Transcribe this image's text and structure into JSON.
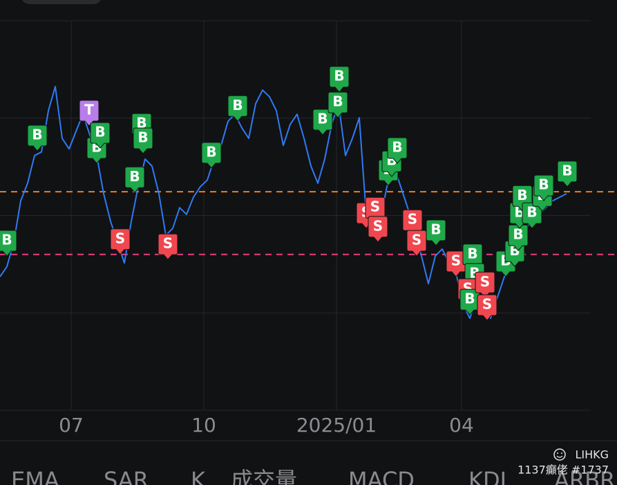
{
  "chart_data": {
    "type": "line",
    "x": [
      0,
      1,
      2,
      3,
      4,
      5,
      6,
      7,
      8,
      9,
      10,
      11,
      12,
      13,
      14,
      15,
      16,
      17,
      18,
      19,
      20,
      21,
      22,
      23,
      24,
      25,
      26,
      27,
      28,
      29,
      30,
      31,
      32,
      33,
      34,
      35,
      36,
      37,
      38,
      39,
      40,
      41,
      42,
      43,
      44,
      45,
      46,
      47,
      48,
      49,
      50,
      51,
      52,
      53,
      54,
      55,
      56,
      57,
      58,
      59,
      60,
      61,
      62,
      63,
      64,
      65,
      66,
      67,
      68,
      69,
      70,
      71,
      72,
      73,
      74,
      75,
      76,
      77,
      78,
      79,
      80,
      81,
      82
    ],
    "series": [
      {
        "color": "#2f7bf5",
        "values": [
          34.3,
          36.9,
          43.2,
          53.8,
          58.3,
          65.4,
          66.3,
          76.9,
          83.1,
          69.8,
          67.1,
          71.6,
          76.0,
          70.7,
          65.4,
          55.6,
          48.5,
          43.2,
          37.8,
          48.5,
          57.4,
          64.5,
          62.7,
          55.6,
          44.9,
          46.7,
          52.0,
          50.3,
          54.7,
          57.4,
          59.1,
          64.5,
          68.0,
          74.2,
          76.0,
          72.5,
          69.8,
          78.7,
          82.2,
          80.5,
          76.9,
          68.0,
          73.4,
          76.0,
          69.8,
          62.7,
          58.3,
          64.5,
          73.4,
          78.7,
          65.4,
          69.8,
          75.1,
          50.3,
          46.7,
          48.5,
          57.4,
          62.7,
          57.4,
          52.0,
          46.7,
          39.6,
          32.5,
          39.6,
          41.4,
          37.8,
          35.2,
          27.2,
          23.6,
          29.0,
          27.2,
          23.6,
          29.0,
          34.3,
          37.8,
          44.9,
          46.7,
          48.5,
          50.3,
          52.0,
          53.8,
          54.7,
          55.6
        ]
      }
    ],
    "xlim": [
      0,
      85.5
    ],
    "ylim": [
      0,
      100
    ],
    "xticks": [
      {
        "value": 10.3,
        "label": "07"
      },
      {
        "value": 29.5,
        "label": "10"
      },
      {
        "value": 48.7,
        "label": "2025/01"
      },
      {
        "value": 66.8,
        "label": "04"
      }
    ],
    "ygrid": [
      0,
      25,
      50,
      75,
      100
    ],
    "grid": true,
    "reference_lines": [
      {
        "value": 56.1,
        "color": "#f07d1f"
      },
      {
        "value": 40.0,
        "color": "#e8407f"
      }
    ],
    "signal_colors": {
      "B": "#1fa94a",
      "S": "#f0474f",
      "T": "#b77ee9"
    },
    "signals": [
      {
        "label": "B",
        "x": 1.0,
        "value": 39.6
      },
      {
        "label": "B",
        "x": 5.4,
        "value": 66.6
      },
      {
        "label": "T",
        "x": 12.9,
        "value": 73.0
      },
      {
        "label": "B",
        "x": 14.0,
        "value": 63.4
      },
      {
        "label": "B",
        "x": 14.5,
        "value": 67.3
      },
      {
        "label": "B",
        "x": 20.5,
        "value": 69.6
      },
      {
        "label": "B",
        "x": 20.7,
        "value": 65.9
      },
      {
        "label": "B",
        "x": 19.5,
        "value": 55.9
      },
      {
        "label": "S",
        "x": 17.4,
        "value": 40.0
      },
      {
        "label": "S",
        "x": 24.3,
        "value": 38.7
      },
      {
        "label": "B",
        "x": 30.6,
        "value": 62.2
      },
      {
        "label": "B",
        "x": 34.4,
        "value": 74.2
      },
      {
        "label": "B",
        "x": 46.7,
        "value": 70.7
      },
      {
        "label": "B",
        "x": 48.9,
        "value": 75.1
      },
      {
        "label": "B",
        "x": 49.1,
        "value": 81.7
      },
      {
        "label": "S",
        "x": 53.0,
        "value": 46.7
      },
      {
        "label": "S",
        "x": 54.3,
        "value": 48.1
      },
      {
        "label": "S",
        "x": 54.7,
        "value": 43.2
      },
      {
        "label": "B",
        "x": 56.2,
        "value": 57.7
      },
      {
        "label": "B",
        "x": 56.7,
        "value": 60.0
      },
      {
        "label": "B",
        "x": 57.5,
        "value": 63.4
      },
      {
        "label": "S",
        "x": 59.7,
        "value": 44.9
      },
      {
        "label": "S",
        "x": 60.3,
        "value": 39.6
      },
      {
        "label": "B",
        "x": 63.1,
        "value": 42.3
      },
      {
        "label": "S",
        "x": 66.0,
        "value": 34.3
      },
      {
        "label": "B",
        "x": 68.4,
        "value": 36.1
      },
      {
        "label": "B",
        "x": 68.7,
        "value": 31.1
      },
      {
        "label": "S",
        "x": 67.7,
        "value": 27.2
      },
      {
        "label": "B",
        "x": 68.0,
        "value": 24.5
      },
      {
        "label": "S",
        "x": 70.2,
        "value": 28.9
      },
      {
        "label": "S",
        "x": 70.5,
        "value": 23.1
      },
      {
        "label": "B",
        "x": 73.2,
        "value": 34.3
      },
      {
        "label": "B",
        "x": 74.5,
        "value": 36.9
      },
      {
        "label": "B",
        "x": 75.0,
        "value": 41.0
      },
      {
        "label": "B",
        "x": 75.2,
        "value": 46.7
      },
      {
        "label": "B",
        "x": 75.6,
        "value": 51.1
      },
      {
        "label": "B",
        "x": 77.0,
        "value": 46.7
      },
      {
        "label": "B",
        "x": 78.5,
        "value": 51.1
      },
      {
        "label": "B",
        "x": 78.7,
        "value": 53.8
      },
      {
        "label": "B",
        "x": 82.1,
        "value": 57.4
      }
    ]
  },
  "tabs": [
    "EMA",
    "SAR",
    "K",
    "成交量",
    "MACD",
    "KDJ",
    "ARBR"
  ],
  "watermark": {
    "brand": "LIHKG",
    "user": "1137癲佬 #1737"
  }
}
